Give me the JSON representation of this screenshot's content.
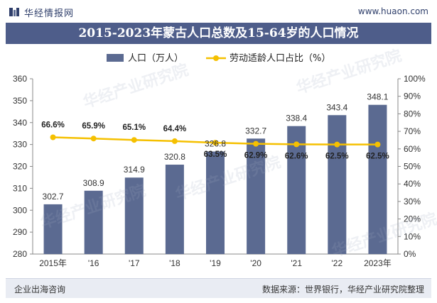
{
  "header": {
    "brand": "华经情报网",
    "site": "www.huaon.com"
  },
  "title": "2015-2023年蒙古人口总数及15-64岁的人口情况",
  "footer": {
    "left": "企业出海咨询",
    "right": "数据来源：世界银行，华经产业研究院整理"
  },
  "watermark": "华经产业研究院",
  "colors": {
    "bar": "#5b6a91",
    "line": "#f5c000",
    "title_bg": "#4e5d8a"
  },
  "chart_data": {
    "type": "bar",
    "categories": [
      "2015年",
      "'16",
      "'17",
      "'18",
      "'19",
      "'20",
      "'21",
      "'22",
      "2023年"
    ],
    "series": [
      {
        "name": "人口（万人）",
        "type": "bar",
        "axis": "left",
        "values": [
          302.7,
          308.9,
          314.9,
          320.8,
          326.8,
          332.7,
          338.4,
          343.4,
          348.1
        ],
        "labels": [
          "302.7",
          "308.9",
          "314.9",
          "320.8",
          "326.8",
          "332.7",
          "338.4",
          "343.4",
          "348.1"
        ]
      },
      {
        "name": "劳动适龄人口占比（%）",
        "type": "line",
        "axis": "right",
        "values": [
          66.6,
          65.9,
          65.1,
          64.4,
          63.5,
          62.9,
          62.6,
          62.5,
          62.5
        ],
        "labels": [
          "66.6%",
          "65.9%",
          "65.1%",
          "64.4%",
          "63.5%",
          "62.9%",
          "62.6%",
          "62.5%",
          "62.5%"
        ]
      }
    ],
    "y_left": {
      "min": 280,
      "max": 360,
      "ticks": [
        "280",
        "290",
        "300",
        "310",
        "320",
        "330",
        "340",
        "350",
        "360"
      ]
    },
    "y_right": {
      "min": 0,
      "max": 100,
      "ticks": [
        "0%",
        "10%",
        "20%",
        "30%",
        "40%",
        "50%",
        "60%",
        "70%",
        "80%",
        "90%",
        "100%"
      ]
    },
    "legend": "top-center",
    "grid": false
  }
}
